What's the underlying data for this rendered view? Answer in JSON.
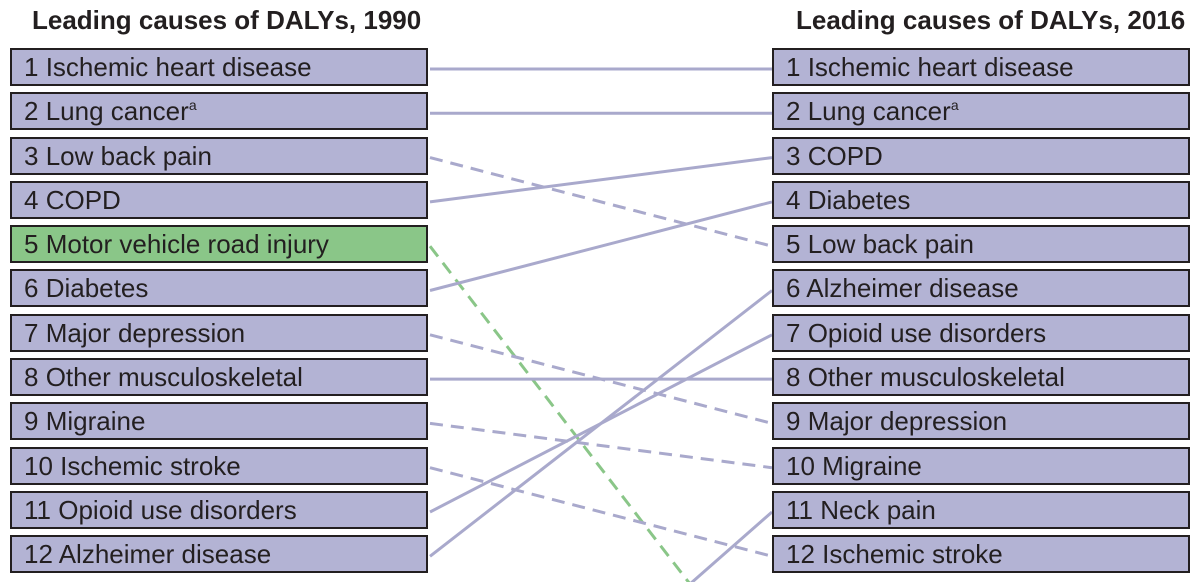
{
  "chart_data": {
    "type": "table",
    "left_title": "Leading causes of DALYs, 1990",
    "right_title": "Leading causes of DALYs, 2016",
    "left_items": [
      {
        "rank": "1",
        "label": "Ischemic heart disease",
        "sup": ""
      },
      {
        "rank": "2",
        "label": "Lung cancer",
        "sup": "a"
      },
      {
        "rank": "3",
        "label": "Low back pain",
        "sup": ""
      },
      {
        "rank": "4",
        "label": "COPD",
        "sup": ""
      },
      {
        "rank": "5",
        "label": "Motor vehicle road injury",
        "sup": "",
        "highlight": true
      },
      {
        "rank": "6",
        "label": "Diabetes",
        "sup": ""
      },
      {
        "rank": "7",
        "label": "Major depression",
        "sup": ""
      },
      {
        "rank": "8",
        "label": "Other musculoskeletal",
        "sup": ""
      },
      {
        "rank": "9",
        "label": "Migraine",
        "sup": ""
      },
      {
        "rank": "10",
        "label": "Ischemic stroke",
        "sup": ""
      },
      {
        "rank": "11",
        "label": "Opioid use disorders",
        "sup": ""
      },
      {
        "rank": "12",
        "label": "Alzheimer disease",
        "sup": ""
      }
    ],
    "right_items": [
      {
        "rank": "1",
        "label": "Ischemic heart disease",
        "sup": ""
      },
      {
        "rank": "2",
        "label": "Lung cancer",
        "sup": "a"
      },
      {
        "rank": "3",
        "label": "COPD",
        "sup": ""
      },
      {
        "rank": "4",
        "label": "Diabetes",
        "sup": ""
      },
      {
        "rank": "5",
        "label": "Low back pain",
        "sup": ""
      },
      {
        "rank": "6",
        "label": "Alzheimer disease",
        "sup": ""
      },
      {
        "rank": "7",
        "label": "Opioid use disorders",
        "sup": ""
      },
      {
        "rank": "8",
        "label": "Other musculoskeletal",
        "sup": ""
      },
      {
        "rank": "9",
        "label": "Major depression",
        "sup": ""
      },
      {
        "rank": "10",
        "label": "Migraine",
        "sup": ""
      },
      {
        "rank": "11",
        "label": "Neck pain",
        "sup": ""
      },
      {
        "rank": "12",
        "label": "Ischemic stroke",
        "sup": ""
      }
    ],
    "links": [
      {
        "from": 1,
        "to": 1,
        "style": "solid"
      },
      {
        "from": 2,
        "to": 2,
        "style": "solid"
      },
      {
        "from": 3,
        "to": 5,
        "style": "dashed"
      },
      {
        "from": 4,
        "to": 3,
        "style": "solid"
      },
      {
        "from": 5,
        "to": null,
        "style": "dashed",
        "highlight": true
      },
      {
        "from": 6,
        "to": 4,
        "style": "solid"
      },
      {
        "from": 7,
        "to": 9,
        "style": "dashed"
      },
      {
        "from": 8,
        "to": 8,
        "style": "solid"
      },
      {
        "from": 9,
        "to": 10,
        "style": "dashed"
      },
      {
        "from": 10,
        "to": 12,
        "style": "dashed"
      },
      {
        "from": 11,
        "to": 7,
        "style": "solid"
      },
      {
        "from": 12,
        "to": 6,
        "style": "solid"
      },
      {
        "from": null,
        "to": 11,
        "style": "solid"
      }
    ],
    "colors": {
      "box_fill": "#b3b3d4",
      "highlight_fill": "#8ac688",
      "line": "#a9a9cc",
      "highlight_line": "#8ac688",
      "border": "#231f20"
    }
  }
}
